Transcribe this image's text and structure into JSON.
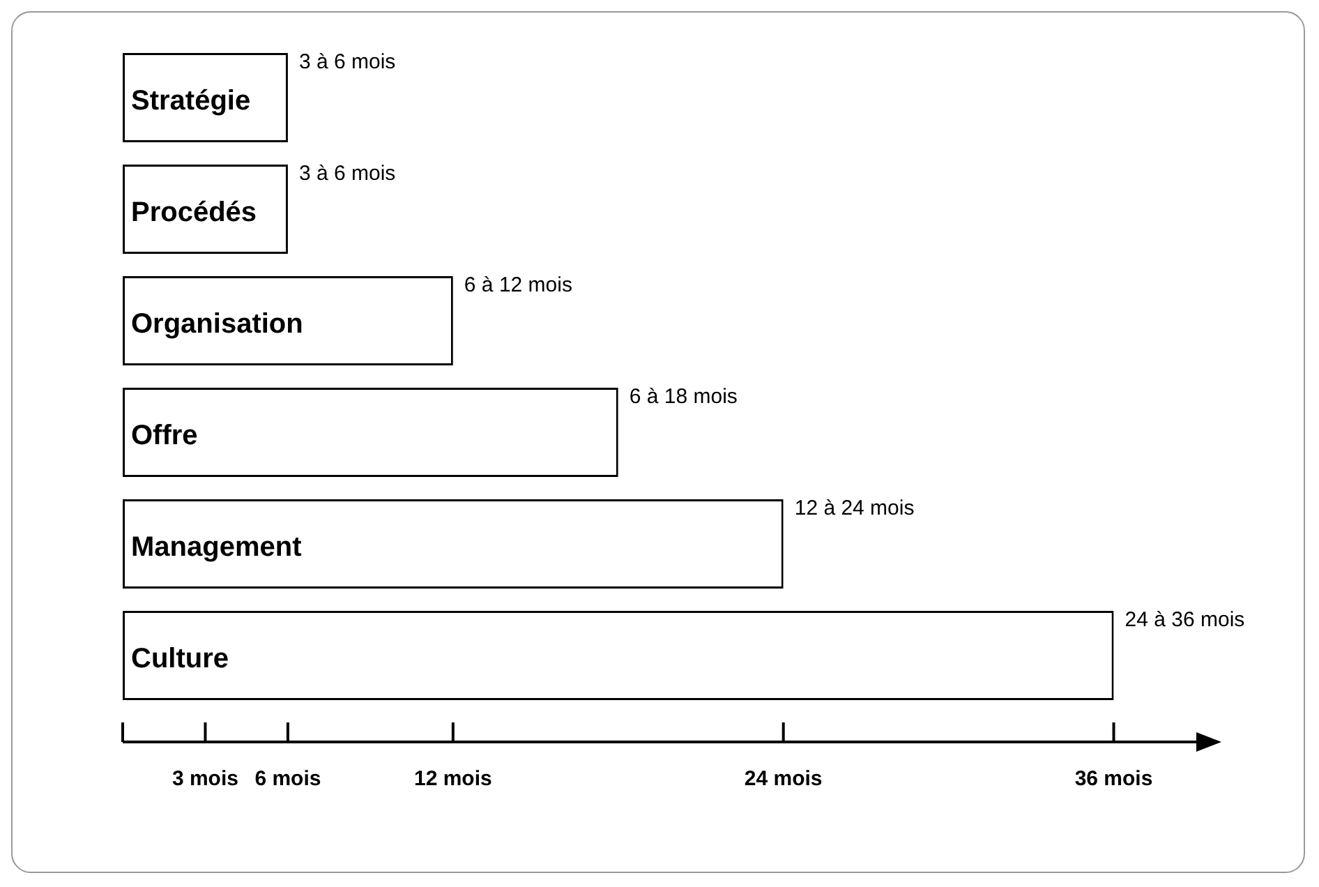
{
  "chart_data": {
    "type": "bar",
    "orientation": "horizontal",
    "categories": [
      "Stratégie",
      "Procédés",
      "Organisation",
      "Offre",
      "Management",
      "Culture"
    ],
    "values": [
      6,
      6,
      12,
      18,
      24,
      36
    ],
    "color": "#ffffff",
    "value_labels": [
      "3 à 6 mois",
      "3 à 6 mois",
      "6 à 12 mois",
      "6 à 18 mois",
      "12 à 24 mois",
      "24 à 36 mois"
    ],
    "xlim": [
      0,
      39
    ],
    "xticks": [
      {
        "value": 0,
        "label": null
      },
      {
        "value": 3,
        "label": "3 mois"
      },
      {
        "value": 6,
        "label": "6 mois"
      },
      {
        "value": 12,
        "label": "12 mois"
      },
      {
        "value": 24,
        "label": "24 mois"
      },
      {
        "value": 36,
        "label": "36 mois"
      }
    ],
    "legend": false
  }
}
